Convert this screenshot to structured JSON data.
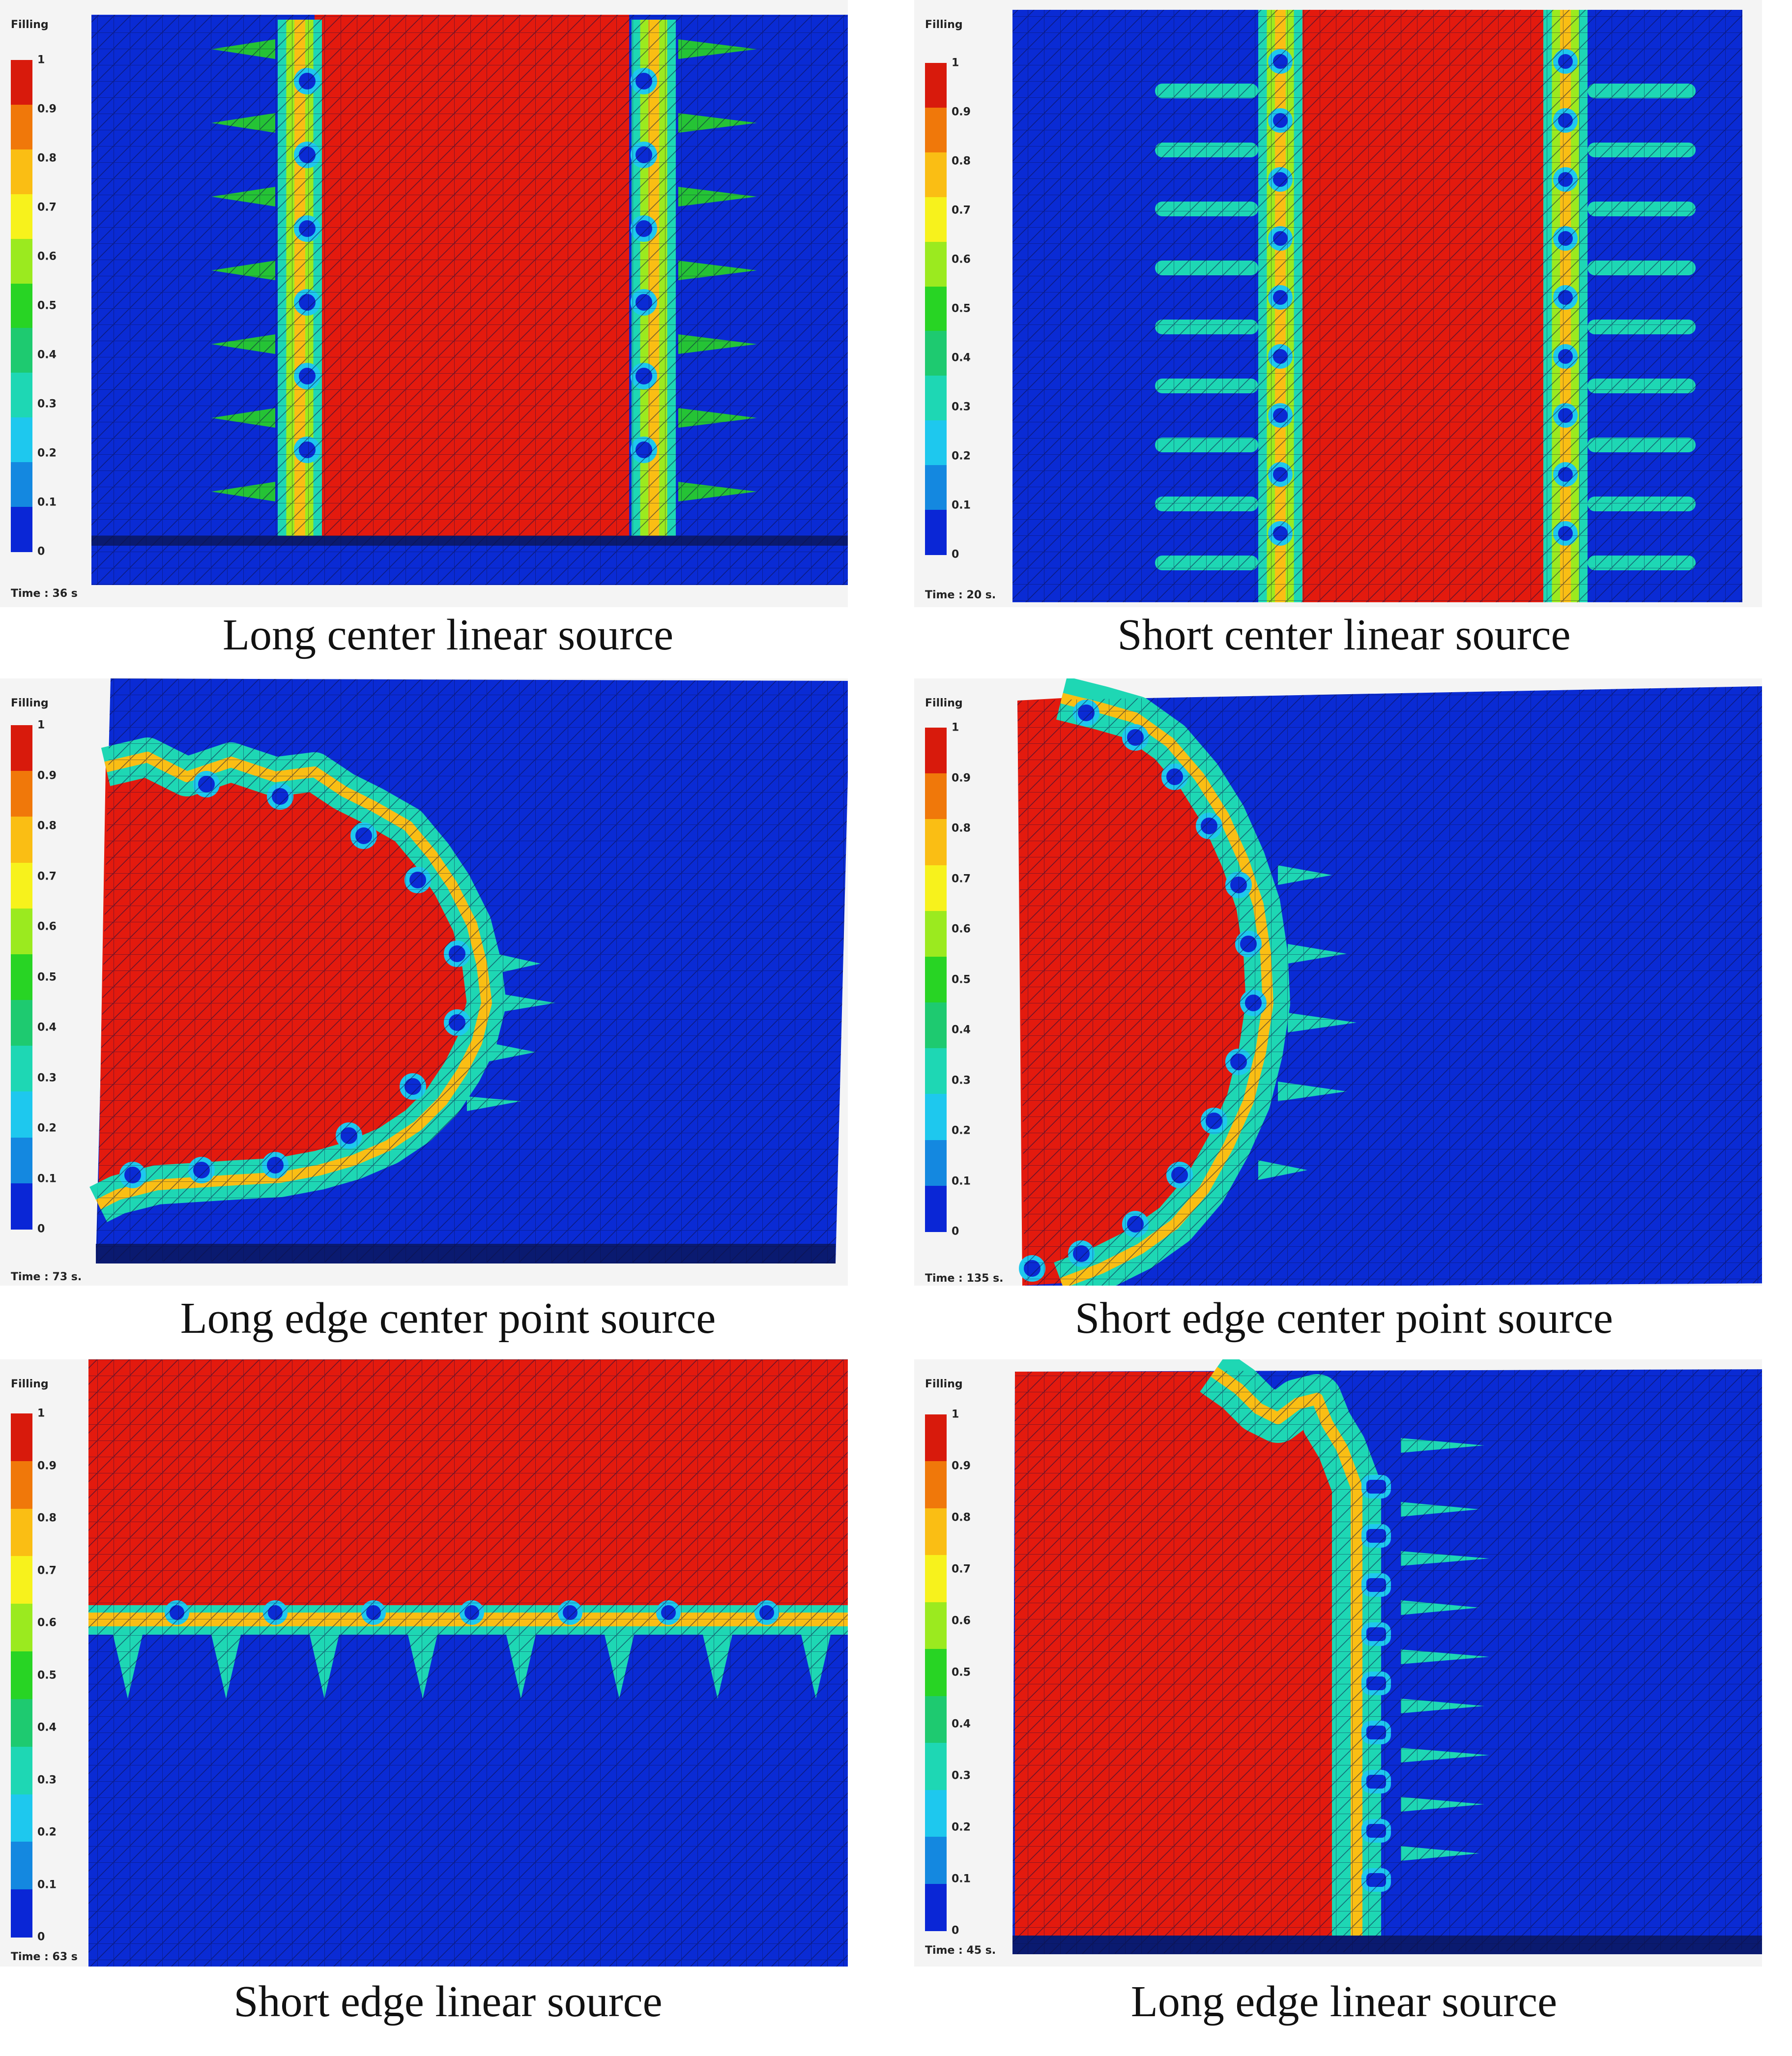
{
  "legend": {
    "title": "Filling",
    "ticks": [
      "1",
      "0.9",
      "0.8",
      "0.7",
      "0.6",
      "0.5",
      "0.4",
      "0.3",
      "0.2",
      "0.1",
      "0"
    ],
    "colors": [
      "#d81a0c",
      "#f0780a",
      "#fabe14",
      "#f7f21c",
      "#9bea1f",
      "#28d424",
      "#1eca70",
      "#1ed7b4",
      "#1ec8ee",
      "#1488e0",
      "#0a26d6"
    ]
  },
  "colors": {
    "filled": "#e31a0e",
    "empty": "#0a2bd4",
    "grid": "#0b0f40"
  },
  "panels": [
    {
      "id": "p1",
      "time": "Time : 36 s",
      "caption": "Long center linear source"
    },
    {
      "id": "p2",
      "time": "Time : 20 s.",
      "caption": "Short center linear source"
    },
    {
      "id": "p3",
      "time": "Time : 73 s.",
      "caption": "Long edge center point source"
    },
    {
      "id": "p4",
      "time": "Time : 135 s.",
      "caption": "Short edge center point source"
    },
    {
      "id": "p5",
      "time": "Time : 63 s",
      "caption": "Short edge linear source"
    },
    {
      "id": "p6",
      "time": "Time : 45 s.",
      "caption": "Long edge linear source"
    }
  ]
}
